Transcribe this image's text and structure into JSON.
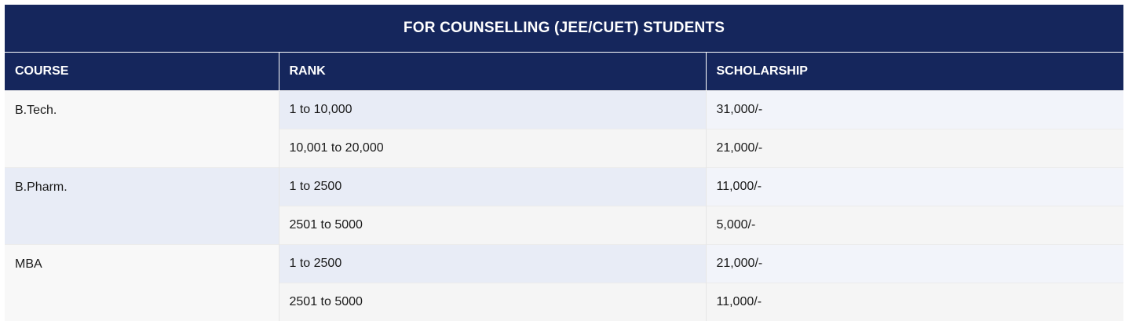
{
  "title": "FOR COUNSELLING (JEE/CUET) STUDENTS",
  "headers": {
    "course": "COURSE",
    "rank": "RANK",
    "scholarship": "SCHOLARSHIP"
  },
  "rows": [
    {
      "course": "B.Tech.",
      "tiers": [
        {
          "rank": "1 to 10,000",
          "scholarship": "31,000/-"
        },
        {
          "rank": "10,001 to 20,000",
          "scholarship": "21,000/-"
        }
      ]
    },
    {
      "course": "B.Pharm.",
      "tiers": [
        {
          "rank": "1 to 2500",
          "scholarship": "11,000/-"
        },
        {
          "rank": "2501 to 5000",
          "scholarship": "5,000/-"
        }
      ]
    },
    {
      "course": "MBA",
      "tiers": [
        {
          "rank": "1 to 2500",
          "scholarship": "21,000/-"
        },
        {
          "rank": "2501 to 5000",
          "scholarship": "11,000/-"
        }
      ]
    }
  ],
  "colors": {
    "header_bg": "#15265c",
    "header_text": "#ffffff"
  }
}
